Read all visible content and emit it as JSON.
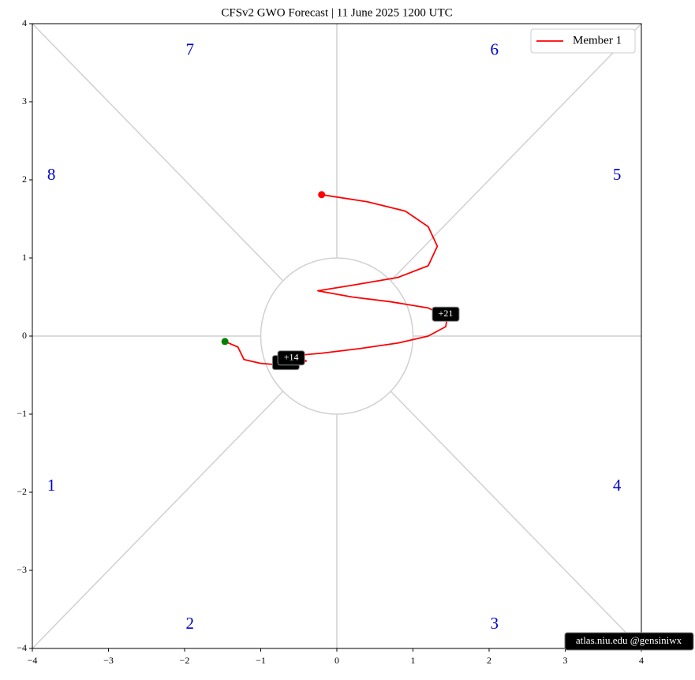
{
  "chart_data": {
    "type": "line",
    "title": "CFSv2 GWO Forecast   |   11  June  2025 1200 UTC",
    "x": [
      -1.47,
      -1.3,
      -1.22,
      -1.0,
      -0.75,
      -0.55,
      -0.4,
      -0.55,
      -0.2,
      0.3,
      0.8,
      1.2,
      1.43,
      1.45,
      1.2,
      0.7,
      0.2,
      -0.25,
      0.2,
      0.8,
      1.2,
      1.32,
      1.2,
      0.9,
      0.4,
      -0.2
    ],
    "series": [
      {
        "name": "Member 1",
        "color": "#ff0000",
        "values": [
          -0.07,
          -0.14,
          -0.3,
          -0.35,
          -0.37,
          -0.35,
          -0.32,
          -0.25,
          -0.22,
          -0.16,
          -0.09,
          0.0,
          0.12,
          0.24,
          0.36,
          0.44,
          0.5,
          0.58,
          0.65,
          0.75,
          0.9,
          1.15,
          1.4,
          1.6,
          1.72,
          1.81
        ]
      }
    ],
    "start_color": "#008000",
    "end_color": "#ff0000",
    "day_labels": [
      {
        "text": "+7",
        "x": -0.67,
        "y": -0.34
      },
      {
        "text": "+14",
        "x": -0.6,
        "y": -0.28
      },
      {
        "text": "+21",
        "x": 1.43,
        "y": 0.28
      }
    ],
    "phase_labels": [
      {
        "text": "1",
        "x": -3.75,
        "y": -1.93
      },
      {
        "text": "2",
        "x": -1.93,
        "y": -3.7
      },
      {
        "text": "3",
        "x": 2.07,
        "y": -3.7
      },
      {
        "text": "4",
        "x": 3.68,
        "y": -1.93
      },
      {
        "text": "5",
        "x": 3.68,
        "y": 2.05
      },
      {
        "text": "6",
        "x": 2.07,
        "y": 3.65
      },
      {
        "text": "7",
        "x": -1.93,
        "y": 3.65
      },
      {
        "text": "8",
        "x": -3.75,
        "y": 2.05
      }
    ],
    "watermark": "atlas.niu.edu  @gensiniwx",
    "legend": "upper right",
    "xlim": [
      -4,
      4
    ],
    "ylim": [
      -4,
      4
    ],
    "xticks": [
      {
        "value": -4,
        "label": "−4"
      },
      {
        "value": -3,
        "label": "−3"
      },
      {
        "value": -2,
        "label": "−2"
      },
      {
        "value": -1,
        "label": "−1"
      },
      0,
      1,
      2,
      3,
      4
    ],
    "yticks": [
      {
        "value": -4,
        "label": "−4"
      },
      {
        "value": -3,
        "label": "−3"
      },
      {
        "value": -2,
        "label": "−2"
      },
      {
        "value": -1,
        "label": "−1"
      },
      0,
      1,
      2,
      3,
      4
    ]
  }
}
